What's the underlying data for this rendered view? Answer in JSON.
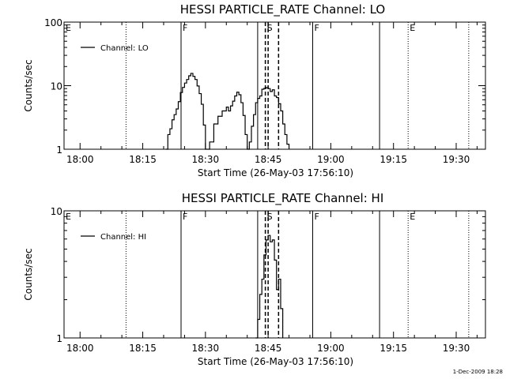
{
  "chart_data": [
    {
      "type": "line",
      "title": "HESSI PARTICLE_RATE Channel: LO",
      "xlabel": "Start Time (26-May-03 17:56:10)",
      "ylabel": "Counts/sec",
      "yscale": "log",
      "ylim": [
        1,
        100
      ],
      "xlim": [
        "17:56:10",
        "19:37:00"
      ],
      "x_ticks": [
        "18:00",
        "18:15",
        "18:30",
        "18:45",
        "19:00",
        "19:15",
        "19:30"
      ],
      "y_ticks": [
        "1",
        "10",
        "100"
      ],
      "legend": {
        "placement": "top-left",
        "entries": [
          "Channel: LO"
        ]
      },
      "series": [
        {
          "name": "Channel: LO",
          "x": [
            "18:20:30",
            "18:21:00",
            "18:21:30",
            "18:22:00",
            "18:22:30",
            "18:23:00",
            "18:23:30",
            "18:24:00",
            "18:24:30",
            "18:25:00",
            "18:25:30",
            "18:26:00",
            "18:26:30",
            "18:27:00",
            "18:27:30",
            "18:28:00",
            "18:28:30",
            "18:29:00",
            "18:29:30",
            "18:30:00",
            "18:31:00",
            "18:32:00",
            "18:33:00",
            "18:34:00",
            "18:35:00",
            "18:35:30",
            "18:36:00",
            "18:36:30",
            "18:37:00",
            "18:37:30",
            "18:38:00",
            "18:38:30",
            "18:39:00",
            "18:39:30",
            "18:40:00",
            "18:40:30",
            "18:41:00",
            "18:41:30",
            "18:42:00",
            "18:42:30",
            "18:43:00",
            "18:43:30",
            "18:44:00",
            "18:44:30",
            "18:45:00",
            "18:45:30",
            "18:46:00",
            "18:46:30",
            "18:47:00",
            "18:47:30",
            "18:48:00",
            "18:48:30",
            "18:49:00",
            "18:49:30",
            "18:50:00"
          ],
          "y": [
            1.0,
            1.7,
            2.1,
            2.9,
            3.5,
            4.3,
            5.6,
            7.8,
            9.4,
            11.0,
            12.5,
            14.3,
            15.6,
            14.0,
            12.5,
            9.9,
            7.5,
            5.1,
            2.4,
            1.0,
            1.3,
            2.5,
            3.3,
            4.0,
            4.6,
            4.0,
            4.8,
            5.7,
            6.9,
            7.9,
            7.2,
            5.4,
            3.4,
            1.7,
            1.0,
            1.3,
            2.3,
            3.5,
            5.4,
            6.3,
            6.9,
            8.8,
            9.1,
            9.3,
            9.0,
            8.1,
            8.6,
            6.9,
            6.5,
            5.2,
            4.0,
            2.5,
            1.7,
            1.2,
            1.0
          ]
        }
      ],
      "markers": [
        {
          "label": "E",
          "time": "17:56:10",
          "style": "dotted"
        },
        {
          "label": "",
          "time": "18:11:00",
          "style": "dotted"
        },
        {
          "label": "F",
          "time": "18:24:10",
          "style": "solid"
        },
        {
          "label": "",
          "time": "18:42:30",
          "style": "solid"
        },
        {
          "label": "S",
          "time": "18:44:20",
          "style": "dashed"
        },
        {
          "label": "",
          "time": "18:45:00",
          "style": "dashed"
        },
        {
          "label": "",
          "time": "18:47:30",
          "style": "dashed"
        },
        {
          "label": "F",
          "time": "18:55:40",
          "style": "solid"
        },
        {
          "label": "",
          "time": "19:11:40",
          "style": "solid"
        },
        {
          "label": "E",
          "time": "19:18:30",
          "style": "dotted"
        },
        {
          "label": "",
          "time": "19:33:00",
          "style": "dotted"
        }
      ]
    },
    {
      "type": "line",
      "title": "HESSI PARTICLE_RATE Channel: HI",
      "xlabel": "Start Time (26-May-03 17:56:10)",
      "ylabel": "Counts/sec",
      "yscale": "log",
      "ylim": [
        1,
        10
      ],
      "xlim": [
        "17:56:10",
        "19:37:00"
      ],
      "x_ticks": [
        "18:00",
        "18:15",
        "18:30",
        "18:45",
        "19:00",
        "19:15",
        "19:30"
      ],
      "y_ticks": [
        "1",
        "10"
      ],
      "legend": {
        "placement": "top-left",
        "entries": [
          "Channel: HI"
        ]
      },
      "series": [
        {
          "name": "Channel: HI",
          "x": [
            "18:42:00",
            "18:42:30",
            "18:43:00",
            "18:43:30",
            "18:44:00",
            "18:44:30",
            "18:45:00",
            "18:45:30",
            "18:46:00",
            "18:46:30",
            "18:47:00",
            "18:47:30",
            "18:48:00",
            "18:48:30"
          ],
          "y": [
            1.0,
            1.4,
            2.2,
            2.9,
            4.5,
            5.9,
            6.4,
            5.7,
            5.9,
            4.1,
            2.4,
            2.9,
            1.7,
            1.0
          ]
        }
      ],
      "markers": [
        {
          "label": "E",
          "time": "17:56:10",
          "style": "dotted"
        },
        {
          "label": "",
          "time": "18:11:00",
          "style": "dotted"
        },
        {
          "label": "F",
          "time": "18:24:10",
          "style": "solid"
        },
        {
          "label": "",
          "time": "18:42:30",
          "style": "solid"
        },
        {
          "label": "S",
          "time": "18:44:20",
          "style": "dashed"
        },
        {
          "label": "",
          "time": "18:45:00",
          "style": "dashed"
        },
        {
          "label": "",
          "time": "18:47:30",
          "style": "dashed"
        },
        {
          "label": "F",
          "time": "18:55:40",
          "style": "solid"
        },
        {
          "label": "",
          "time": "19:11:40",
          "style": "solid"
        },
        {
          "label": "E",
          "time": "19:18:30",
          "style": "dotted"
        },
        {
          "label": "",
          "time": "19:33:00",
          "style": "dotted"
        }
      ]
    }
  ],
  "footer": {
    "timestamp": "1-Dec-2009 18:28"
  }
}
